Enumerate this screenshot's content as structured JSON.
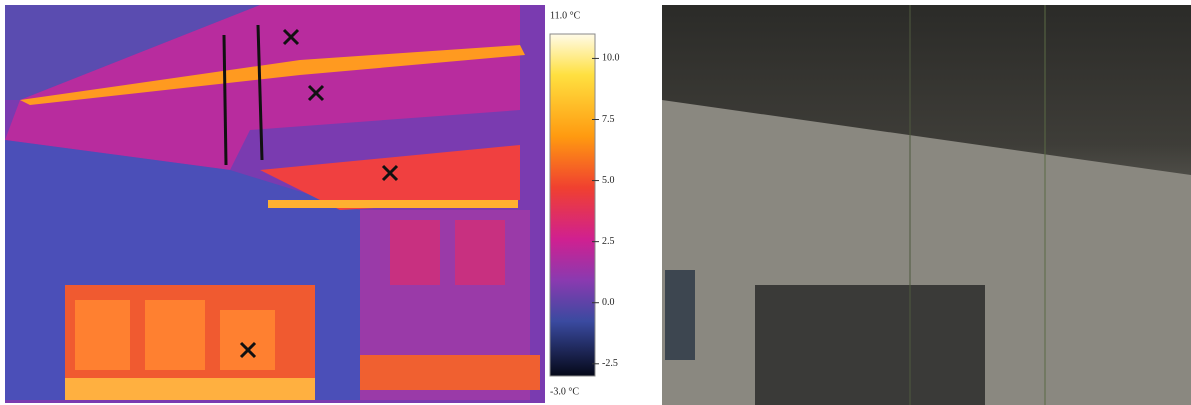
{
  "colorbar": {
    "range": [
      -3,
      11
    ],
    "range_labels": [
      "-3.0 °C",
      "11.0 °C"
    ],
    "ticks": [
      {
        "value": 10,
        "label": "10.0"
      },
      {
        "value": 7.5,
        "label": "7.5"
      },
      {
        "value": 5,
        "label": "5.0"
      },
      {
        "value": 2.5,
        "label": "2.5"
      },
      {
        "value": 0,
        "label": "0.0"
      },
      {
        "value": -2.5,
        "label": "-2.5"
      }
    ]
  }
}
